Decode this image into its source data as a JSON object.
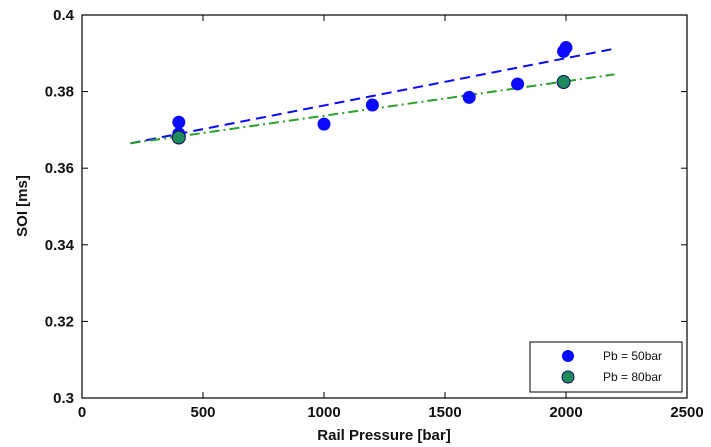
{
  "chart_data": {
    "type": "scatter",
    "xlabel": "Rail Pressure [bar]",
    "ylabel": "SOI [ms]",
    "xlim": [
      0,
      2500
    ],
    "ylim": [
      0.3,
      0.4
    ],
    "xticks": [
      0,
      500,
      1000,
      1500,
      2000,
      2500
    ],
    "yticks": [
      0.3,
      0.32,
      0.34,
      0.36,
      0.38,
      0.4
    ],
    "xtick_labels": [
      "0",
      "500",
      "1000",
      "1500",
      "2000",
      "2500"
    ],
    "ytick_labels": [
      "0.3",
      "0.32",
      "0.34",
      "0.36",
      "0.38",
      "0.4"
    ],
    "grid": false,
    "legend_position": "bottom-right",
    "series": [
      {
        "name": "Pb = 50bar",
        "color": "#0a0aff",
        "marker": "circle",
        "x": [
          400,
          400,
          1000,
          1200,
          1600,
          1800,
          1990,
          2000
        ],
        "y": [
          0.372,
          0.369,
          0.3715,
          0.3765,
          0.3785,
          0.382,
          0.3905,
          0.3915
        ],
        "fit": {
          "style": "dashed",
          "x": [
            200,
            2200
          ],
          "y": [
            0.3665,
            0.3912
          ]
        }
      },
      {
        "name": "Pb = 80bar",
        "color": "#1f8a5a",
        "fit_color": "#2ca02c",
        "marker": "circle",
        "x": [
          400,
          1990
        ],
        "y": [
          0.368,
          0.3825
        ],
        "fit": {
          "style": "dashdot",
          "x": [
            200,
            2200
          ],
          "y": [
            0.3665,
            0.3845
          ]
        }
      }
    ]
  }
}
